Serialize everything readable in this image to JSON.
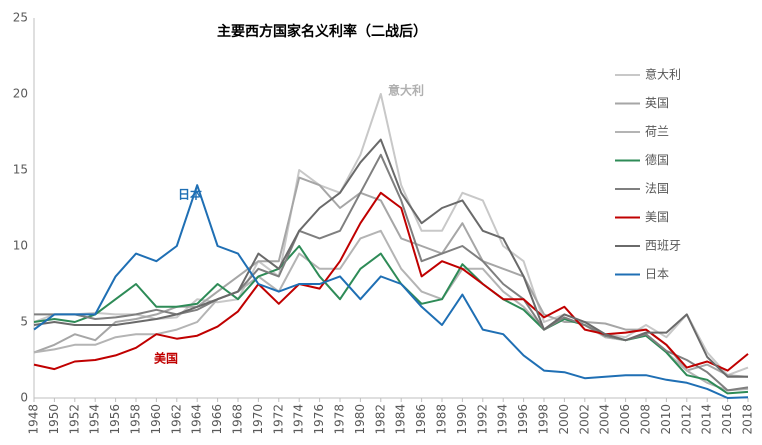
{
  "chart_data": {
    "type": "line",
    "title": "主要西方国家名义利率（二战后）",
    "x": [
      1948,
      1950,
      1952,
      1954,
      1956,
      1958,
      1960,
      1962,
      1964,
      1966,
      1968,
      1970,
      1972,
      1974,
      1976,
      1978,
      1980,
      1982,
      1984,
      1986,
      1988,
      1990,
      1992,
      1994,
      1996,
      1998,
      2000,
      2002,
      2004,
      2006,
      2008,
      2010,
      2012,
      2014,
      2016,
      2018
    ],
    "xlim": [
      1948,
      2018
    ],
    "xticks": [
      1948,
      1950,
      1952,
      1954,
      1956,
      1958,
      1960,
      1962,
      1964,
      1966,
      1968,
      1970,
      1972,
      1974,
      1976,
      1978,
      1980,
      1982,
      1984,
      1986,
      1988,
      1990,
      1992,
      1994,
      1996,
      1998,
      2000,
      2002,
      2004,
      2006,
      2008,
      2010,
      2012,
      2014,
      2016,
      2018
    ],
    "ylim": [
      0,
      25
    ],
    "yticks": [
      0,
      5,
      10,
      15,
      20,
      25
    ],
    "series": [
      {
        "name": "意大利",
        "color": "#c8c8c8",
        "values": [
          5,
          5.5,
          5.5,
          5.6,
          5.5,
          5.5,
          5.2,
          5.3,
          6.5,
          6.3,
          6.5,
          9,
          8,
          15,
          14,
          13.5,
          16,
          20,
          14,
          11,
          11,
          13.5,
          13,
          10,
          9,
          5,
          5.5,
          5,
          4.2,
          4,
          4.8,
          4,
          5.5,
          3,
          1.5,
          2
        ]
      },
      {
        "name": "英国",
        "color": "#a6a6a6",
        "values": [
          3,
          3.5,
          4.2,
          3.8,
          5,
          5.2,
          5.5,
          6,
          6,
          7,
          8,
          9,
          9,
          14.5,
          14,
          12.5,
          13.5,
          13,
          10.5,
          10,
          9.5,
          11.5,
          9,
          8.5,
          8,
          5.5,
          5,
          5,
          4.9,
          4.5,
          4.5,
          3.5,
          1.8,
          2.2,
          1.5,
          1.4
        ]
      },
      {
        "name": "荷兰",
        "color": "#b4b4b4",
        "values": [
          3,
          3.2,
          3.5,
          3.5,
          4,
          4.2,
          4.2,
          4.5,
          5,
          6.5,
          7,
          8,
          7,
          9.5,
          8.5,
          8.5,
          10.5,
          11,
          8.5,
          7,
          6.5,
          8.5,
          8.5,
          7,
          6,
          4.5,
          5.2,
          4.8,
          4,
          3.8,
          4.2,
          3,
          1.8,
          1,
          0.5,
          0.6
        ]
      },
      {
        "name": "德国",
        "color": "#2e8b57",
        "values": [
          5,
          5.2,
          5,
          5.5,
          6.5,
          7.5,
          6,
          6,
          6.2,
          7.5,
          6.5,
          8,
          8.5,
          10,
          8,
          6.5,
          8.5,
          9.5,
          7.5,
          6.2,
          6.5,
          8.8,
          7.5,
          6.5,
          5.8,
          4.5,
          5.2,
          4.8,
          4.1,
          3.8,
          4.1,
          3,
          1.5,
          1.2,
          0.3,
          0.4
        ]
      },
      {
        "name": "法国",
        "color": "#7f7f7f",
        "values": [
          5.5,
          5.5,
          5.5,
          5.2,
          5.3,
          5.5,
          5.8,
          5.5,
          5.8,
          6.5,
          7,
          8.5,
          8,
          11,
          10.5,
          11,
          13.5,
          16,
          13,
          9,
          9.5,
          10,
          9,
          7.5,
          6.5,
          4.5,
          5.3,
          4.8,
          4.1,
          3.8,
          4.2,
          3.1,
          2.5,
          1.7,
          0.5,
          0.7
        ]
      },
      {
        "name": "美国",
        "color": "#c00000",
        "values": [
          2.2,
          1.9,
          2.4,
          2.5,
          2.8,
          3.3,
          4.2,
          3.9,
          4.1,
          4.7,
          5.7,
          7.5,
          6.2,
          7.5,
          7.2,
          9,
          11.5,
          13.5,
          12.5,
          8,
          9,
          8.5,
          7.5,
          6.5,
          6.5,
          5.3,
          6,
          4.5,
          4.2,
          4.3,
          4.5,
          3.5,
          2,
          2.4,
          1.8,
          2.9
        ]
      },
      {
        "name": "西班牙",
        "color": "#6a6a6a",
        "values": [
          4.8,
          5,
          4.8,
          4.8,
          4.8,
          5,
          5.2,
          5.5,
          6,
          6.5,
          7,
          9.5,
          8.5,
          11,
          12.5,
          13.5,
          15.5,
          17,
          13.5,
          11.5,
          12.5,
          13,
          11,
          10.5,
          8,
          4.5,
          5.5,
          5,
          4.2,
          3.8,
          4.3,
          4.3,
          5.5,
          2.7,
          1.4,
          1.4
        ]
      },
      {
        "name": "日本",
        "color": "#1f6fb4",
        "values": [
          4.5,
          5.5,
          5.5,
          5.5,
          8,
          9.5,
          9,
          10,
          14,
          10,
          9.5,
          7.5,
          7,
          7.5,
          7.5,
          8,
          6.5,
          8,
          7.5,
          6,
          4.8,
          6.8,
          4.5,
          4.2,
          2.8,
          1.8,
          1.7,
          1.3,
          1.4,
          1.5,
          1.5,
          1.2,
          1,
          0.6,
          0,
          0.05
        ]
      }
    ],
    "annotations": [
      "意大利",
      "日本",
      "美国"
    ]
  }
}
